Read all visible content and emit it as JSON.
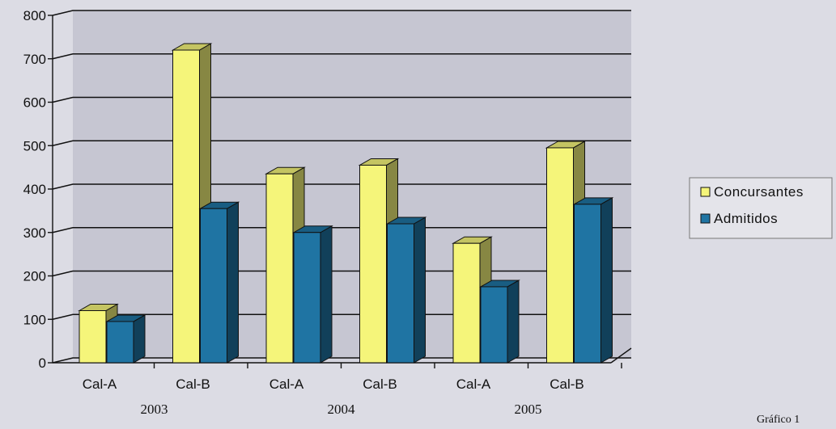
{
  "chart_data": {
    "type": "bar",
    "categories": [
      "Cal-A",
      "Cal-B",
      "Cal-A",
      "Cal-B",
      "Cal-A",
      "Cal-B"
    ],
    "groups": [
      {
        "label": "2003",
        "categories": [
          "Cal-A",
          "Cal-B"
        ]
      },
      {
        "label": "2004",
        "categories": [
          "Cal-A",
          "Cal-B"
        ]
      },
      {
        "label": "2005",
        "categories": [
          "Cal-A",
          "Cal-B"
        ]
      }
    ],
    "series": [
      {
        "name": "Concursantes",
        "color": "#f5f57a",
        "values": [
          120,
          720,
          435,
          455,
          275,
          495
        ]
      },
      {
        "name": "Admitidos",
        "color": "#1f74a3",
        "values": [
          95,
          355,
          300,
          320,
          175,
          365
        ]
      }
    ],
    "ylim": [
      0,
      800
    ],
    "yticks": [
      0,
      100,
      200,
      300,
      400,
      500,
      600,
      700,
      800
    ],
    "grid": true,
    "three_d": true,
    "legend": "right",
    "title": "",
    "xlabel": "",
    "ylabel": ""
  },
  "footer_text": "Gráfico 1"
}
